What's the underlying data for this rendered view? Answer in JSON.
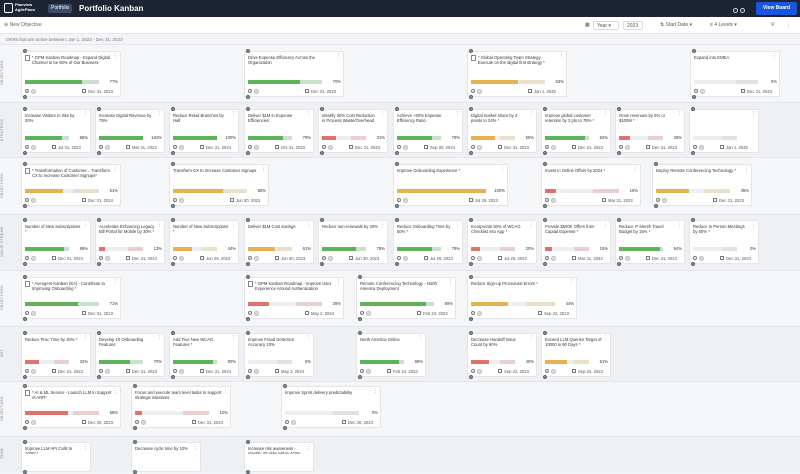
{
  "app": {
    "logo_text": "Planview AgilePlace",
    "workspace_pill": "Portfolio",
    "title": "Portfolio Kanban",
    "view_board": "View Board"
  },
  "toolbar": {
    "new_objective": "New Objective",
    "period": "Year",
    "year": "2023",
    "sort": "Start Date",
    "levels": "4 Levels"
  },
  "subheader": "OKRs that are active between: Jan 1, 2023 - Dec 31, 2023",
  "lanes": [
    {
      "label": "OBJECTIVES"
    },
    {
      "label": "STRATEGIC"
    },
    {
      "label": "OBJECTIVES"
    },
    {
      "label": "VALUE STREAM"
    },
    {
      "label": "OBJECTIVES"
    },
    {
      "label": "ART"
    },
    {
      "label": "OBJECTIVES"
    },
    {
      "label": "TEAM"
    }
  ],
  "colors": {
    "green": "#5db35a",
    "amber": "#e5b24f",
    "red": "#e0716c",
    "grey": "#b5bbc3"
  },
  "cards": [
    {
      "title": "* GPM Kanban Roadmap - Expand Digital Channel to be 50% of Our Business",
      "pct": "77%",
      "progress": 0.77,
      "status": "green",
      "date": "Dec 31, 2023"
    },
    {
      "title": "Drive Expense Efficiency Across the Organization",
      "pct": "70%",
      "progress": 0.7,
      "status": "green",
      "date": "Dec 31, 2023"
    },
    {
      "title": "* Global Operating Team Strategy - Execute on the digital first strategy *",
      "pct": "63%",
      "progress": 0.63,
      "status": "amber",
      "date": "Jan 1, 2025"
    },
    {
      "title": "Expand into EMEA",
      "pct": "0%",
      "progress": 0.0,
      "status": "grey",
      "date": "Dec 31, 2023"
    },
    {
      "title": "Increase Visitors to Site by 30%",
      "pct": "85%",
      "progress": 0.85,
      "status": "green",
      "date": "Jul 31, 2023"
    },
    {
      "title": "Increase Digital Revenue by 75%",
      "pct": "104%",
      "progress": 1.0,
      "status": "green",
      "date": "Mar 31, 2023"
    },
    {
      "title": "Reduce Retail Branches by Half",
      "pct": "100%",
      "progress": 1.0,
      "status": "green",
      "date": "Dec 31, 2023"
    },
    {
      "title": "Deliver $1M in Expense Efficiencies",
      "pct": "79%",
      "progress": 0.79,
      "status": "green",
      "date": "Oct 31, 2023"
    },
    {
      "title": "Identify 30% Cost Reduction in Process Waste/Overhead",
      "pct": "31%",
      "progress": 0.31,
      "status": "red",
      "date": "Dec 31, 2023"
    },
    {
      "title": "Achieve ~50% Expense Efficiency Ratio",
      "pct": "79%",
      "progress": 0.79,
      "status": "green",
      "date": "Sep 30, 2023"
    },
    {
      "title": "Digital market share by 3 points to 24% *",
      "pct": "55%",
      "progress": 0.55,
      "status": "amber",
      "date": "Dec 31, 2023"
    },
    {
      "title": "Improve global customer retention by 3 pts to 75% *",
      "pct": "92%",
      "progress": 0.92,
      "status": "green",
      "date": "Dec 31, 2023"
    },
    {
      "title": "Grow revenues by 5% or $100M *",
      "pct": "26%",
      "progress": 0.26,
      "status": "red",
      "date": "Dec 31, 2023"
    },
    {
      "title": "",
      "pct": "",
      "progress": 0,
      "status": "grey",
      "date": "Jan 1, 2025"
    },
    {
      "title": "* Transformation of Customer... Transform CX to Increase Customer Signups*",
      "pct": "51%",
      "progress": 0.51,
      "status": "amber",
      "date": "Dec 31, 2024"
    },
    {
      "title": "Transform CX to Increase Customer Signups",
      "pct": "68%",
      "progress": 0.68,
      "status": "amber",
      "date": "Jun 30, 2023"
    },
    {
      "title": "Improve Onboarding Experience *",
      "pct": "100%",
      "progress": 1.0,
      "status": "amber",
      "date": "Jul 29, 2023"
    },
    {
      "title": "Invest in Online Offers by 2024 *",
      "pct": "15%",
      "progress": 0.15,
      "status": "red",
      "date": "Mar 31, 2023"
    },
    {
      "title": "Deploy Remote Conferencing Technology *",
      "pct": "45%",
      "progress": 0.45,
      "status": "amber",
      "date": "Dec 31, 2023"
    },
    {
      "title": "Number of New Subscriptions *",
      "pct": "88%",
      "progress": 0.88,
      "status": "green",
      "date": "Dec 31, 2024"
    },
    {
      "title": "Accelerate Enhancing Legacy Bill Portal for Mobile by 30% *",
      "pct": "13%",
      "progress": 0.13,
      "status": "red",
      "date": "Dec 31, 2024"
    },
    {
      "title": "Number of New Subscriptions *",
      "pct": "44%",
      "progress": 0.44,
      "status": "amber",
      "date": "Jun 29, 2023"
    },
    {
      "title": "Deliver $1M Cost savings",
      "pct": "61%",
      "progress": 0.61,
      "status": "amber",
      "date": "Jun 30, 2023"
    },
    {
      "title": "Reduce non-renewals by 30%",
      "pct": "78%",
      "progress": 0.78,
      "status": "green",
      "date": "Jun 30, 2023"
    },
    {
      "title": "Reduce Onboarding Time by 50% *",
      "pct": "79%",
      "progress": 0.79,
      "status": "green",
      "date": "Jul 29, 2023"
    },
    {
      "title": "Incorporate 50% of WCAG Checklist into App *",
      "pct": "20%",
      "progress": 0.2,
      "status": "red",
      "date": "Jul 29, 2023"
    },
    {
      "title": "Provide $500K Offers from Capital Expense *",
      "pct": "15%",
      "progress": 0.15,
      "status": "red",
      "date": "Mar 31, 2023"
    },
    {
      "title": "Reduce IT Month Travel Budget by 15% *",
      "pct": "94%",
      "progress": 0.94,
      "status": "green",
      "date": "Dec 31, 2023"
    },
    {
      "title": "Reduce In Person Meetings by 50% *",
      "pct": "0%",
      "progress": 0.0,
      "status": "grey",
      "date": "Dec 31, 2023"
    },
    {
      "title": "* Avengers Kanban (EA) - Contribute to Improving Onboarding *",
      "pct": "71%",
      "progress": 0.71,
      "status": "green",
      "date": "Dec 31, 2023"
    },
    {
      "title": "* GPM Kanban Roadmap - Improve User Experience Around Authentication",
      "pct": "28%",
      "progress": 0.28,
      "status": "red",
      "date": "May 2, 2024"
    },
    {
      "title": "Remote Conferencing Technology - North America Deployment",
      "pct": "89%",
      "progress": 0.89,
      "status": "green",
      "date": "Feb 24, 2023"
    },
    {
      "title": "Reduce Sign-up Procedural Errors *",
      "pct": "44%",
      "progress": 0.44,
      "status": "amber",
      "date": "Sep 22, 2023"
    },
    {
      "title": "Reduce Proc Time by 20% *",
      "pct": "32%",
      "progress": 0.32,
      "status": "red",
      "date": "Dec 31, 2023"
    },
    {
      "title": "Develop 10 Onboarding Features",
      "pct": "70%",
      "progress": 0.7,
      "status": "green",
      "date": "Dec 31, 2023"
    },
    {
      "title": "Add Five New WCAG Features *",
      "pct": "90%",
      "progress": 0.9,
      "status": "green",
      "date": "Dec 31, 2023"
    },
    {
      "title": "Improve Fraud Detection Accuracy 10%",
      "pct": "0%",
      "progress": 0.0,
      "status": "grey",
      "date": "May 2, 2024"
    },
    {
      "title": "North America Online",
      "pct": "89%",
      "progress": 0.89,
      "status": "green",
      "date": "Feb 24, 2023"
    },
    {
      "title": "Decrease Handoff Issue Count by 90%",
      "pct": "40%",
      "progress": 0.4,
      "status": "red",
      "date": "Sep 22, 2023"
    },
    {
      "title": "Exceed LLM Queries Target of 10000 in 90 Days *",
      "pct": "51%",
      "progress": 0.51,
      "status": "amber",
      "date": "Sep 22, 2023"
    },
    {
      "title": "* AI & ML Service - Launch LLM in Support of ARR*",
      "pct": "58%",
      "progress": 0.58,
      "status": "red",
      "date": "Dec 30, 2023"
    },
    {
      "title": "Focus and execute team level tasks to support strategic initiatives",
      "pct": "10%",
      "progress": 0.1,
      "status": "red",
      "date": "Dec 31, 2023"
    },
    {
      "title": "Improve Sprint delivery predictability",
      "pct": "0%",
      "progress": 0.0,
      "status": "grey",
      "date": "Dec 30, 2023"
    },
    {
      "title": "Improve LLM API Calls to 1000/ *",
      "pct": "",
      "progress": 0,
      "status": "grey",
      "date": ""
    },
    {
      "title": "Decrease cycle time by 10%",
      "pct": "",
      "progress": 0,
      "status": "grey",
      "date": ""
    },
    {
      "title": "Increase risk awareness - Identify 20 risks within 4Qtrs",
      "pct": "",
      "progress": 0,
      "status": "grey",
      "date": ""
    }
  ]
}
